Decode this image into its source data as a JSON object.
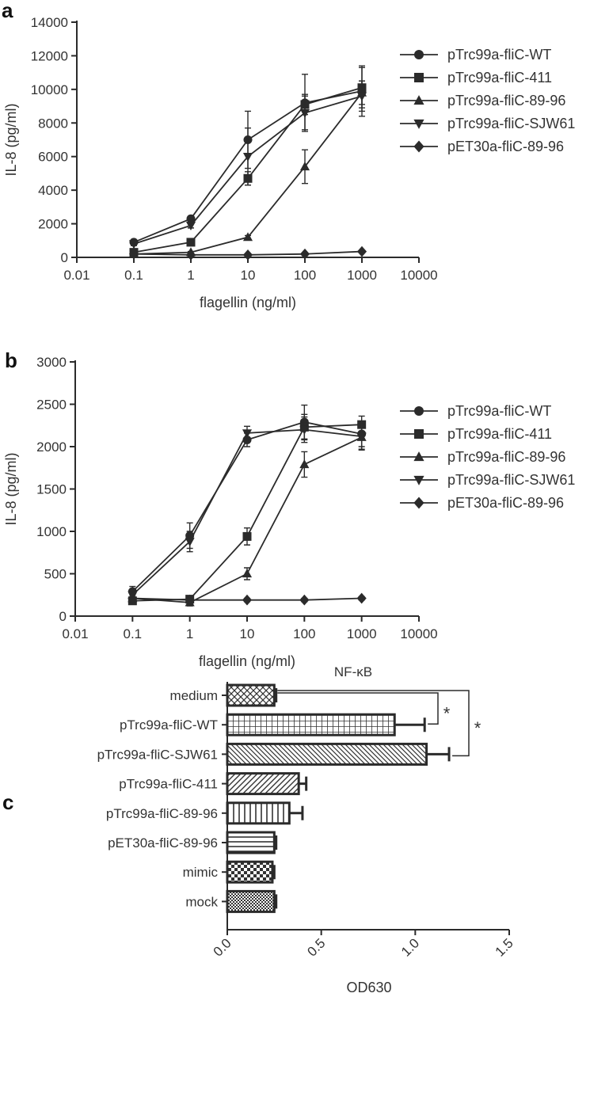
{
  "chart_data": [
    {
      "panel": "a",
      "type": "line",
      "xscale": "log",
      "xlabel": "flagellin (ng/ml)",
      "ylabel": "IL-8 (pg/ml)",
      "xlim": [
        0.01,
        10000
      ],
      "ylim": [
        0,
        14000
      ],
      "xticks": [
        0.01,
        0.1,
        1,
        10,
        100,
        1000,
        10000
      ],
      "xtick_labels": [
        "0.01",
        "0.1",
        "1",
        "10",
        "100",
        "1000",
        "10000"
      ],
      "yticks": [
        0,
        2000,
        4000,
        6000,
        8000,
        10000,
        12000,
        14000
      ],
      "ytick_labels": [
        "0",
        "2000",
        "4000",
        "6000",
        "8000",
        "10000",
        "12000",
        "14000"
      ],
      "legend_position": "right",
      "x": [
        0.1,
        1,
        10,
        100,
        1000
      ],
      "series": [
        {
          "name": "pTrc99a-fliC-WT",
          "marker": "circle",
          "values": [
            900,
            2300,
            7000,
            9200,
            9900
          ],
          "errors": [
            100,
            150,
            1700,
            1700,
            1500
          ]
        },
        {
          "name": "pTrc99a-fliC-411",
          "marker": "square",
          "values": [
            300,
            900,
            4700,
            9100,
            10100
          ],
          "errors": [
            50,
            100,
            400,
            600,
            1200
          ]
        },
        {
          "name": "pTrc99a-fliC-89-96",
          "marker": "triangle-up",
          "values": [
            200,
            300,
            1200,
            5400,
            9800
          ],
          "errors": [
            30,
            50,
            100,
            1000,
            700
          ]
        },
        {
          "name": "pTrc99a-fliC-SJW61",
          "marker": "triangle-down",
          "values": [
            800,
            1900,
            6000,
            8600,
            9600
          ],
          "errors": [
            100,
            150,
            1700,
            1000,
            900
          ]
        },
        {
          "name": "pET30a-fliC-89-96",
          "marker": "diamond",
          "values": [
            200,
            150,
            150,
            200,
            350
          ],
          "errors": [
            30,
            30,
            30,
            30,
            50
          ]
        }
      ]
    },
    {
      "panel": "b",
      "type": "line",
      "xscale": "log",
      "xlabel": "flagellin (ng/ml)",
      "ylabel": "IL-8 (pg/ml)",
      "xlim": [
        0.01,
        10000
      ],
      "ylim": [
        0,
        3000
      ],
      "xticks": [
        0.01,
        0.1,
        1,
        10,
        100,
        1000,
        10000
      ],
      "xtick_labels": [
        "0.01",
        "0.1",
        "1",
        "10",
        "100",
        "1000",
        "10000"
      ],
      "yticks": [
        0,
        500,
        1000,
        1500,
        2000,
        2500,
        3000
      ],
      "ytick_labels": [
        "0",
        "500",
        "1000",
        "1500",
        "2000",
        "2500",
        "3000"
      ],
      "legend_position": "right",
      "x": [
        0.1,
        1,
        10,
        100,
        1000
      ],
      "series": [
        {
          "name": "pTrc99a-fliC-WT",
          "marker": "circle",
          "values": [
            290,
            950,
            2080,
            2290,
            2150
          ],
          "errors": [
            60,
            150,
            80,
            200,
            150
          ]
        },
        {
          "name": "pTrc99a-fliC-411",
          "marker": "square",
          "values": [
            180,
            200,
            940,
            2230,
            2260
          ],
          "errors": [
            40,
            40,
            100,
            150,
            100
          ]
        },
        {
          "name": "pTrc99a-fliC-89-96",
          "marker": "triangle-up",
          "values": [
            210,
            160,
            500,
            1790,
            2110
          ],
          "errors": [
            40,
            40,
            70,
            150,
            150
          ]
        },
        {
          "name": "pTrc99a-fliC-SJW61",
          "marker": "triangle-down",
          "values": [
            250,
            880,
            2160,
            2200,
            2120
          ],
          "errors": [
            60,
            120,
            80,
            150,
            150
          ]
        },
        {
          "name": "pET30a-fliC-89-96",
          "marker": "diamond",
          "values": [
            210,
            190,
            190,
            190,
            210
          ],
          "errors": [
            20,
            20,
            20,
            20,
            20
          ]
        }
      ]
    },
    {
      "panel": "c",
      "type": "bar",
      "orientation": "horizontal",
      "title": "NF-κB",
      "xlabel": "OD630",
      "xlim": [
        0,
        1.5
      ],
      "xticks": [
        0.0,
        0.5,
        1.0,
        1.5
      ],
      "xtick_labels": [
        "0.0",
        "0.5",
        "1.0",
        "1.5"
      ],
      "categories": [
        "medium",
        "pTrc99a-fliC-WT",
        "pTrc99a-fliC-SJW61",
        "pTrc99a-fliC-411",
        "pTrc99a-fliC-89-96",
        "pET30a-fliC-89-96",
        "mimic",
        "mock"
      ],
      "values": [
        0.25,
        0.89,
        1.06,
        0.38,
        0.33,
        0.25,
        0.24,
        0.25
      ],
      "errors": [
        0.01,
        0.16,
        0.12,
        0.04,
        0.07,
        0.01,
        0.01,
        0.01
      ],
      "patterns": [
        "diagonal-crosshatch",
        "grid",
        "diagonal-thin",
        "diagonal-wide",
        "vertical",
        "horizontal",
        "checker",
        "dots"
      ],
      "significance": [
        {
          "from": "medium",
          "to": "pTrc99a-fliC-WT",
          "label": "*"
        },
        {
          "from": "medium",
          "to": "pTrc99a-fliC-SJW61",
          "label": "*"
        }
      ]
    }
  ]
}
